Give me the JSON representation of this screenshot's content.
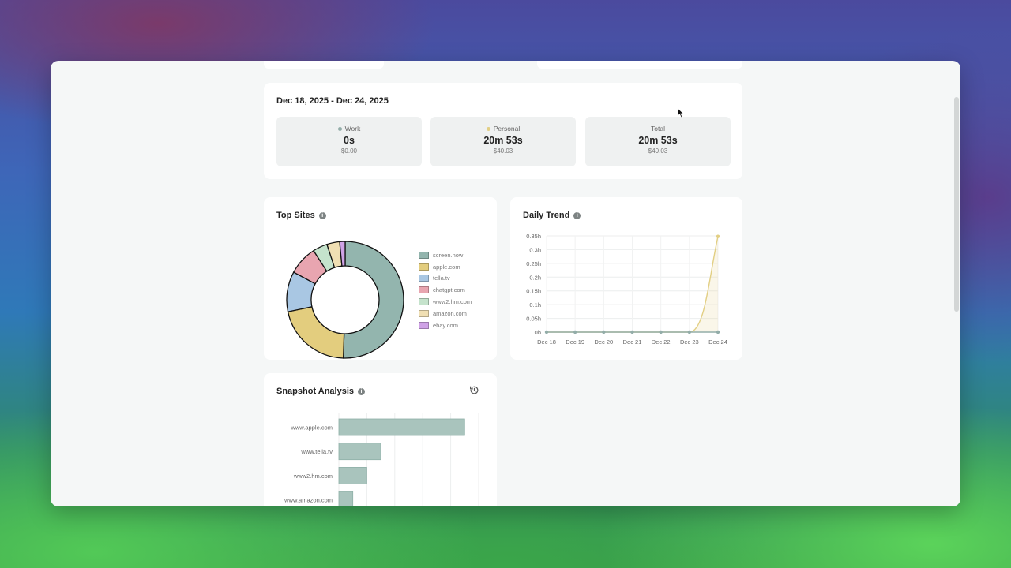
{
  "summary": {
    "date_range": "Dec 18, 2025 - Dec 24, 2025",
    "work": {
      "label": "Work",
      "value": "0s",
      "cost": "$0.00",
      "color": "#93ada9"
    },
    "personal": {
      "label": "Personal",
      "value": "20m 53s",
      "cost": "$40.03",
      "color": "#e2cf84"
    },
    "total": {
      "label": "Total",
      "value": "20m 53s",
      "cost": "$40.03"
    }
  },
  "top_sites": {
    "title": "Top Sites",
    "info_icon": "info-icon"
  },
  "daily_trend": {
    "title": "Daily Trend",
    "info_icon": "info-icon"
  },
  "snapshot": {
    "title": "Snapshot Analysis",
    "history_icon": "history-icon"
  },
  "chart_data": [
    {
      "type": "pie",
      "title": "Top Sites",
      "donut": true,
      "categories": [
        "screen.now",
        "apple.com",
        "tella.tv",
        "chatgpt.com",
        "www2.hm.com",
        "amazon.com",
        "ebay.com"
      ],
      "values": [
        50,
        21,
        11,
        8,
        4,
        3.5,
        1.5
      ],
      "colors": [
        "#93b5ae",
        "#e3cd7e",
        "#a9c7e3",
        "#e8a5b0",
        "#c5e3cc",
        "#f0dfb3",
        "#cfa2e6"
      ],
      "legend": "right"
    },
    {
      "type": "area",
      "title": "Daily Trend",
      "categories": [
        "Dec 18",
        "Dec 19",
        "Dec 20",
        "Dec 21",
        "Dec 22",
        "Dec 23",
        "Dec 24"
      ],
      "series": [
        {
          "name": "Work",
          "values": [
            0,
            0,
            0,
            0,
            0,
            0,
            0
          ],
          "color": "#93ada9"
        },
        {
          "name": "Personal",
          "values": [
            0,
            0,
            0,
            0,
            0,
            0,
            0.348
          ],
          "color": "#e2cf84"
        }
      ],
      "ylim": [
        0,
        0.35
      ],
      "yticks": [
        "0h",
        "0.05h",
        "0.1h",
        "0.15h",
        "0.2h",
        "0.25h",
        "0.3h",
        "0.35h"
      ],
      "grid": true
    },
    {
      "type": "bar",
      "orientation": "horizontal",
      "title": "Snapshot Analysis",
      "categories": [
        "www.apple.com",
        "www.tella.tv",
        "www2.hm.com",
        "www.amazon.com"
      ],
      "values": [
        9,
        3,
        2,
        1
      ],
      "xlim": [
        0,
        10
      ],
      "color": "#a9c4bd"
    }
  ]
}
